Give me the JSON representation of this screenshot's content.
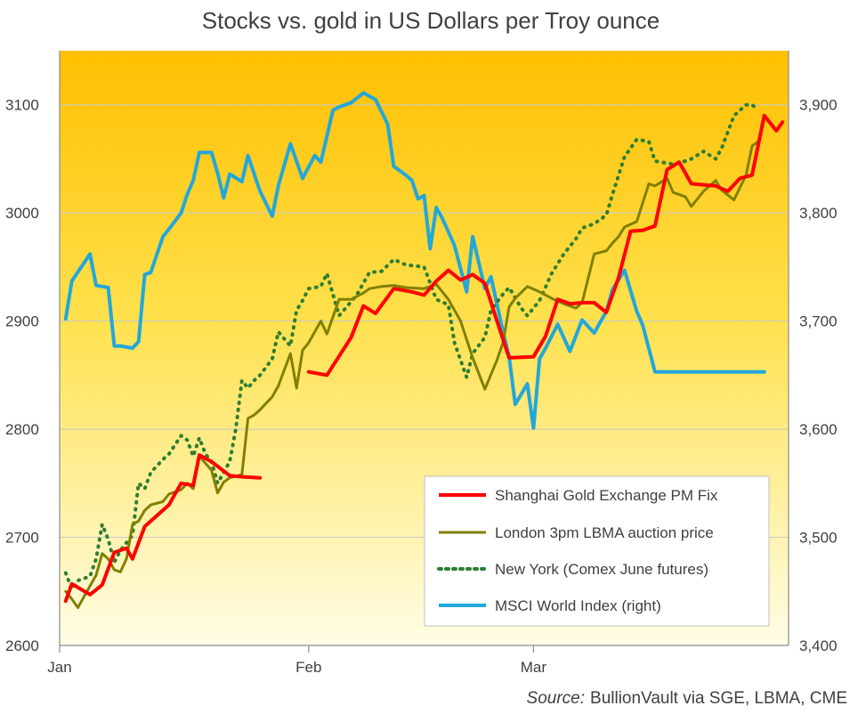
{
  "chart_data": {
    "type": "line",
    "title": "Stocks vs. gold in US Dollars per Troy  ounce",
    "source_label": "Source:",
    "source_text": "BullionVault via SGE, LBMA, CME",
    "x_ticks": [
      "Jan",
      "Feb",
      "Mar"
    ],
    "left_axis": {
      "range": [
        2600,
        3150
      ],
      "ticks": [
        "2600",
        "2700",
        "2800",
        "2900",
        "3000",
        "3100"
      ]
    },
    "right_axis": {
      "range": [
        3400,
        3950
      ],
      "ticks": [
        "3,400",
        "3,500",
        "3,600",
        "3,700",
        "3,800",
        "3,900"
      ]
    },
    "grid": "horizontal",
    "legend_position": "bottom-right",
    "colors": {
      "sge": "#ff0000",
      "lbma": "#808000",
      "comex": "#2e7d32",
      "msci": "#22a7db"
    },
    "series": [
      {
        "name": "Shanghai Gold Exchange PM Fix",
        "axis": "left",
        "style": "solid",
        "color": "#ff0000",
        "segments": [
          {
            "x": [
              1,
              2,
              5,
              7,
              9,
              11,
              12,
              14,
              16,
              18,
              20,
              22,
              23,
              25,
              28,
              30,
              33
            ],
            "y": [
              2641,
              2657,
              2647,
              2656,
              2686,
              2690,
              2680,
              2710,
              2720,
              2730,
              2750,
              2748,
              2776,
              2770,
              2757,
              2756,
              2755
            ]
          },
          {
            "x": [
              41,
              44,
              48,
              50,
              52,
              55,
              58,
              60,
              62,
              64,
              66,
              68,
              70,
              72,
              74,
              78,
              80,
              82,
              84,
              86,
              88,
              90,
              92,
              94,
              96,
              98,
              100,
              102,
              104,
              106,
              108,
              110,
              112,
              114,
              116,
              118,
              119
            ],
            "y": [
              2853,
              2850,
              2885,
              2914,
              2907,
              2930,
              2927,
              2924,
              2937,
              2947,
              2938,
              2943,
              2935,
              2900,
              2866,
              2867,
              2886,
              2920,
              2916,
              2917,
              2917,
              2908,
              2940,
              2983,
              2984,
              2988,
              3040,
              3047,
              3027,
              3026,
              3025,
              3020,
              3032,
              3035,
              3090,
              3076,
              3084
            ]
          }
        ]
      },
      {
        "name": "London 3pm LBMA auction price",
        "axis": "left",
        "style": "solid",
        "color": "#808000",
        "segments": [
          {
            "x": [
              1,
              2,
              3,
              5,
              6,
              7,
              8,
              9,
              10,
              11,
              12,
              13,
              14,
              15,
              17,
              18,
              20,
              21,
              22,
              23,
              25,
              26,
              27,
              28,
              30,
              31,
              32,
              33,
              35,
              36,
              38,
              39,
              40,
              41,
              43,
              44,
              46,
              48,
              50,
              51,
              53,
              55,
              57,
              60,
              62,
              64,
              66,
              68,
              70,
              72,
              73,
              74,
              75,
              77,
              79,
              81,
              83,
              85,
              86,
              88,
              90,
              91,
              92,
              93,
              95,
              97,
              98,
              100,
              101,
              103,
              104,
              106,
              108,
              109,
              111,
              113,
              114,
              115
            ],
            "y": [
              2650,
              2643,
              2635,
              2655,
              2665,
              2685,
              2680,
              2670,
              2668,
              2680,
              2712,
              2715,
              2725,
              2730,
              2733,
              2740,
              2744,
              2750,
              2745,
              2775,
              2762,
              2741,
              2751,
              2755,
              2758,
              2810,
              2813,
              2818,
              2830,
              2840,
              2870,
              2838,
              2873,
              2880,
              2900,
              2888,
              2920,
              2920,
              2926,
              2930,
              2932,
              2933,
              2931,
              2930,
              2934,
              2920,
              2900,
              2866,
              2837,
              2864,
              2880,
              2913,
              2921,
              2932,
              2927,
              2921,
              2916,
              2912,
              2917,
              2962,
              2965,
              2972,
              2978,
              2987,
              2992,
              3027,
              3025,
              3032,
              3019,
              3015,
              3006,
              3020,
              3030,
              3021,
              3012,
              3035,
              3062,
              3066
            ]
          }
        ]
      },
      {
        "name": "New York (Comex June futures)",
        "axis": "left",
        "style": "dotted",
        "color": "#2e7d32",
        "segments": [
          {
            "x": [
              1,
              2,
              3,
              5,
              6,
              7,
              8,
              9,
              10,
              12,
              13,
              14,
              15,
              17,
              18,
              20,
              21,
              22,
              23,
              24,
              25,
              26,
              27,
              28,
              29,
              30,
              31,
              32,
              33,
              35,
              36,
              38,
              39,
              40,
              41,
              43,
              44,
              46,
              48,
              49,
              51,
              53,
              55,
              57,
              60,
              62,
              64,
              65,
              67,
              68,
              70,
              71,
              73,
              74,
              76,
              77,
              79,
              81,
              83,
              85,
              86,
              88,
              90,
              91,
              93,
              95,
              97,
              98,
              100,
              101,
              103,
              104,
              106,
              108,
              109,
              111,
              113,
              114,
              115
            ],
            "y": [
              2667,
              2652,
              2660,
              2664,
              2680,
              2712,
              2698,
              2677,
              2688,
              2702,
              2750,
              2745,
              2760,
              2772,
              2777,
              2794,
              2790,
              2775,
              2792,
              2777,
              2770,
              2750,
              2760,
              2770,
              2800,
              2845,
              2838,
              2845,
              2850,
              2865,
              2890,
              2877,
              2910,
              2919,
              2930,
              2932,
              2944,
              2905,
              2918,
              2925,
              2945,
              2946,
              2957,
              2952,
              2950,
              2920,
              2915,
              2880,
              2848,
              2870,
              2885,
              2910,
              2925,
              2931,
              2912,
              2905,
              2919,
              2944,
              2962,
              2976,
              2986,
              2990,
              2998,
              3017,
              3052,
              3068,
              3066,
              3048,
              3046,
              3045,
              3048,
              3050,
              3057,
              3050,
              3060,
              3090,
              3100,
              3100,
              3095
            ]
          }
        ]
      },
      {
        "name": "MSCI World Index (right)",
        "axis": "right",
        "style": "solid",
        "color": "#22a7db",
        "segments": [
          {
            "x": [
              1,
              2,
              5,
              6,
              7,
              8,
              9,
              10,
              12,
              13,
              14,
              15,
              17,
              18,
              20,
              21,
              22,
              23,
              25,
              26,
              27,
              28,
              30,
              31,
              33,
              35,
              36,
              38,
              40,
              42,
              43,
              45,
              46,
              48,
              50,
              52,
              54,
              55,
              56,
              57,
              58,
              59,
              60,
              61,
              62,
              63,
              65,
              67,
              68,
              70,
              71,
              73,
              74,
              75,
              77,
              78,
              79,
              80,
              82,
              84,
              86,
              88,
              90,
              91,
              93,
              95,
              96,
              98,
              100,
              102,
              104,
              106,
              108,
              110,
              112,
              113,
              114,
              116
            ],
            "y": [
              3702,
              3737,
              3762,
              3733,
              3732,
              3731,
              3677,
              3677,
              3675,
              3681,
              3743,
              3745,
              3778,
              3785,
              3800,
              3817,
              3830,
              3856,
              3856,
              3837,
              3814,
              3836,
              3829,
              3853,
              3820,
              3797,
              3825,
              3864,
              3832,
              3853,
              3847,
              3895,
              3898,
              3902,
              3911,
              3905,
              3882,
              3843,
              3839,
              3835,
              3830,
              3813,
              3816,
              3767,
              3805,
              3795,
              3770,
              3727,
              3778,
              3730,
              3741,
              3690,
              3667,
              3623,
              3642,
              3601,
              3665,
              3675,
              3697,
              3672,
              3701,
              3689,
              3709,
              3729,
              3747,
              3709,
              3696,
              3653,
              3653,
              3653,
              3653,
              3653,
              3653,
              3653,
              3653,
              3653,
              3653,
              3653
            ]
          }
        ]
      }
    ]
  }
}
